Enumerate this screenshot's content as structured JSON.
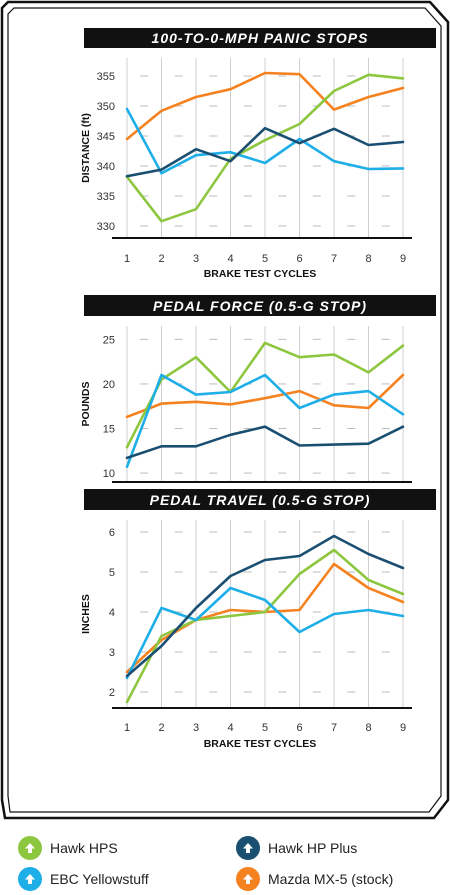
{
  "colors": {
    "hawk_hps": "#8dc63f",
    "hawk_hp_plus": "#1b4f72",
    "ebc_yellowstuff": "#1eaee8",
    "mazda_stock": "#f58220",
    "title_bg": "#111111",
    "frame": "#111111"
  },
  "legend": [
    {
      "key": "hawk_hps",
      "label": "Hawk HPS",
      "icon": "arrow-up-icon"
    },
    {
      "key": "hawk_hp_plus",
      "label": "Hawk HP Plus",
      "icon": "arrow-up-icon"
    },
    {
      "key": "ebc_yellowstuff",
      "label": "EBC Yellowstuff",
      "icon": "arrow-up-icon"
    },
    {
      "key": "mazda_stock",
      "label": "Mazda MX-5 (stock)",
      "icon": "arrow-up-icon"
    }
  ],
  "chart_data": [
    {
      "type": "line",
      "title": "100-TO-0-MPH PANIC STOPS",
      "xlabel": "BRAKE TEST CYCLES",
      "ylabel": "DISTANCE (ft)",
      "x": [
        1,
        2,
        3,
        4,
        5,
        6,
        7,
        8,
        9
      ],
      "yticks": [
        330,
        335,
        340,
        345,
        350,
        355
      ],
      "ylim": [
        328,
        358
      ],
      "grid": "vertical",
      "series": [
        {
          "key": "mazda_stock",
          "name": "Mazda MX-5 (stock)",
          "values": [
            344.5,
            349.2,
            351.5,
            352.8,
            355.5,
            355.3,
            349.4,
            351.5,
            353.0
          ]
        },
        {
          "key": "hawk_hps",
          "name": "Hawk HPS",
          "values": [
            338.2,
            330.8,
            332.8,
            341.2,
            344.3,
            347.0,
            352.5,
            355.2,
            354.6
          ]
        },
        {
          "key": "ebc_yellowstuff",
          "name": "EBC Yellowstuff",
          "values": [
            349.5,
            338.8,
            341.8,
            342.3,
            340.5,
            344.5,
            340.8,
            339.5,
            339.6
          ]
        },
        {
          "key": "hawk_hp_plus",
          "name": "Hawk HP Plus",
          "values": [
            338.3,
            339.4,
            342.8,
            340.8,
            346.3,
            343.8,
            346.2,
            343.5,
            344.0
          ]
        }
      ]
    },
    {
      "type": "line",
      "title": "PEDAL FORCE (0.5-G STOP)",
      "xlabel": "",
      "ylabel": "POUNDS",
      "x": [
        1,
        2,
        3,
        4,
        5,
        6,
        7,
        8,
        9
      ],
      "yticks": [
        10,
        15,
        20,
        25
      ],
      "ylim": [
        9,
        26.5
      ],
      "grid": "vertical",
      "series": [
        {
          "key": "mazda_stock",
          "name": "Mazda MX-5 (stock)",
          "values": [
            16.3,
            17.8,
            18.0,
            17.7,
            18.4,
            19.2,
            17.6,
            17.3,
            21.0
          ]
        },
        {
          "key": "hawk_hps",
          "name": "Hawk HPS",
          "values": [
            12.9,
            20.5,
            23.0,
            19.1,
            24.6,
            23.0,
            23.3,
            21.3,
            24.3
          ]
        },
        {
          "key": "ebc_yellowstuff",
          "name": "EBC Yellowstuff",
          "values": [
            10.7,
            21.0,
            18.8,
            19.1,
            21.0,
            17.3,
            18.8,
            19.2,
            16.6
          ]
        },
        {
          "key": "hawk_hp_plus",
          "name": "Hawk HP Plus",
          "values": [
            11.7,
            13.0,
            13.0,
            14.3,
            15.2,
            13.1,
            13.2,
            13.3,
            15.2
          ]
        }
      ]
    },
    {
      "type": "line",
      "title": "PEDAL TRAVEL (0.5-G STOP)",
      "xlabel": "BRAKE TEST CYCLES",
      "ylabel": "INCHES",
      "x": [
        1,
        2,
        3,
        4,
        5,
        6,
        7,
        8,
        9
      ],
      "yticks": [
        2,
        3,
        4,
        5,
        6
      ],
      "ylim": [
        1.6,
        6.3
      ],
      "grid": "vertical",
      "series": [
        {
          "key": "mazda_stock",
          "name": "Mazda MX-5 (stock)",
          "values": [
            2.5,
            3.3,
            3.8,
            4.05,
            4.0,
            4.05,
            5.2,
            4.6,
            4.25
          ]
        },
        {
          "key": "hawk_hps",
          "name": "Hawk HPS",
          "values": [
            1.75,
            3.4,
            3.8,
            3.9,
            4.0,
            4.95,
            5.55,
            4.8,
            4.45
          ]
        },
        {
          "key": "ebc_yellowstuff",
          "name": "EBC Yellowstuff",
          "values": [
            2.35,
            4.1,
            3.8,
            4.6,
            4.3,
            3.5,
            3.95,
            4.05,
            3.9
          ]
        },
        {
          "key": "hawk_hp_plus",
          "name": "Hawk HP Plus",
          "values": [
            2.4,
            3.15,
            4.1,
            4.9,
            5.3,
            5.4,
            5.9,
            5.45,
            5.1
          ]
        }
      ]
    }
  ]
}
